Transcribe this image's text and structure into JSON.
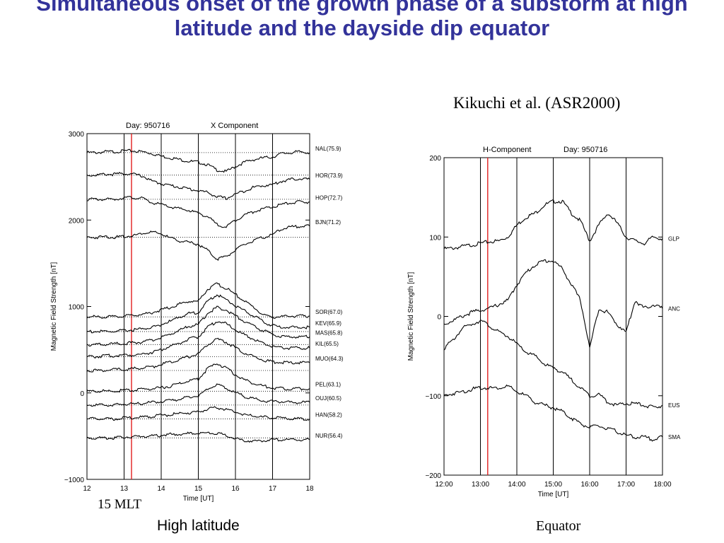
{
  "slide": {
    "title": "Simultaneous onset of the growth phase of a substorm at high latitude and the dayside dip equator",
    "citation": "Kikuchi et al. (ASR2000)",
    "mlt_label": "15 MLT",
    "caption_left": "High latitude",
    "caption_right": "Equator"
  },
  "colors": {
    "title": "#33339a",
    "onset_line": "#e02020",
    "trace": "#000000"
  },
  "chart_data": [
    {
      "type": "line",
      "title": "Day: 950716",
      "subtitle": "X Component",
      "xlabel": "Time [UT]",
      "ylabel": "Magnetic Field Strength  [nT]",
      "xlim": [
        12,
        18
      ],
      "ylim": [
        -1000,
        3000
      ],
      "x_ticks": [
        "12",
        "13",
        "14",
        "15",
        "16",
        "17",
        "18"
      ],
      "y_ticks": [
        "3000",
        "2000",
        "1000",
        "0",
        "−1000"
      ],
      "y_tick_values": [
        3000,
        2000,
        1000,
        0,
        -1000
      ],
      "vertical_lines": [
        13.0,
        14.0,
        15.0,
        16.0,
        17.0
      ],
      "onset_line": 13.2,
      "grid": "dotted horizontal baselines",
      "x": [
        12.0,
        12.25,
        12.5,
        12.75,
        13.0,
        13.25,
        13.5,
        13.75,
        14.0,
        14.25,
        14.5,
        14.75,
        15.0,
        15.25,
        15.5,
        15.75,
        16.0,
        16.25,
        16.5,
        16.75,
        17.0,
        17.25,
        17.5,
        17.75,
        18.0
      ],
      "series": [
        {
          "name": "NAL(75.9)",
          "values": [
            2780,
            2780,
            2790,
            2790,
            2800,
            2800,
            2790,
            2770,
            2740,
            2720,
            2700,
            2680,
            2670,
            2640,
            2580,
            2560,
            2620,
            2670,
            2700,
            2720,
            2730,
            2770,
            2780,
            2790,
            2780
          ]
        },
        {
          "name": "HOR(73.9)",
          "values": [
            2520,
            2520,
            2530,
            2530,
            2540,
            2530,
            2510,
            2450,
            2420,
            2400,
            2380,
            2360,
            2340,
            2320,
            2270,
            2250,
            2300,
            2340,
            2380,
            2400,
            2410,
            2450,
            2470,
            2480,
            2470
          ]
        },
        {
          "name": "HOP(72.7)",
          "values": [
            2240,
            2240,
            2240,
            2240,
            2260,
            2260,
            2250,
            2200,
            2180,
            2150,
            2130,
            2110,
            2080,
            2040,
            1950,
            1920,
            2000,
            2060,
            2100,
            2130,
            2150,
            2180,
            2200,
            2210,
            2210
          ]
        },
        {
          "name": "BJN(71.2)",
          "values": [
            1800,
            1800,
            1810,
            1800,
            1810,
            1820,
            1850,
            1860,
            1840,
            1790,
            1760,
            1740,
            1720,
            1650,
            1550,
            1580,
            1650,
            1720,
            1760,
            1800,
            1830,
            1900,
            1920,
            1930,
            1930
          ]
        },
        {
          "name": "SOR(67.0)",
          "values": [
            880,
            880,
            880,
            880,
            890,
            900,
            910,
            930,
            960,
            990,
            1030,
            1060,
            1060,
            1200,
            1260,
            1210,
            1140,
            1060,
            990,
            900,
            880,
            880,
            890,
            890,
            890
          ]
        },
        {
          "name": "KEV(65.9)",
          "values": [
            710,
            710,
            710,
            710,
            720,
            730,
            740,
            760,
            790,
            830,
            880,
            920,
            930,
            1060,
            1140,
            1080,
            1010,
            950,
            890,
            820,
            780,
            760,
            760,
            760,
            760
          ]
        },
        {
          "name": "MAS(65.8)",
          "values": [
            560,
            560,
            560,
            570,
            570,
            580,
            590,
            610,
            640,
            680,
            730,
            770,
            790,
            920,
            990,
            960,
            890,
            830,
            770,
            720,
            680,
            650,
            650,
            650,
            650
          ]
        },
        {
          "name": "KIL(65.5)",
          "values": [
            420,
            420,
            430,
            430,
            440,
            440,
            450,
            470,
            500,
            540,
            580,
            620,
            650,
            760,
            830,
            800,
            730,
            670,
            620,
            570,
            540,
            520,
            520,
            520,
            520
          ]
        },
        {
          "name": "MUO(64.3)",
          "values": [
            260,
            260,
            260,
            270,
            270,
            280,
            290,
            300,
            330,
            360,
            390,
            420,
            450,
            560,
            620,
            590,
            520,
            460,
            420,
            380,
            360,
            350,
            350,
            350,
            350
          ]
        },
        {
          "name": "PEL(63.1)",
          "values": [
            20,
            20,
            20,
            20,
            30,
            30,
            40,
            50,
            60,
            80,
            110,
            140,
            160,
            280,
            340,
            290,
            210,
            150,
            110,
            80,
            60,
            50,
            50,
            50,
            50
          ]
        },
        {
          "name": "OUJ(60.5)",
          "values": [
            -140,
            -140,
            -140,
            -140,
            -130,
            -130,
            -120,
            -110,
            -100,
            -90,
            -70,
            -50,
            -30,
            50,
            90,
            60,
            0,
            -40,
            -70,
            -90,
            -100,
            -100,
            -110,
            -110,
            -110
          ]
        },
        {
          "name": "HAN(58.2)",
          "values": [
            -300,
            -300,
            -300,
            -300,
            -290,
            -290,
            -280,
            -270,
            -260,
            -250,
            -240,
            -230,
            -220,
            -190,
            -170,
            -190,
            -220,
            -250,
            -270,
            -280,
            -290,
            -290,
            -300,
            -300,
            -300
          ]
        },
        {
          "name": "NUR(56.4)",
          "values": [
            -520,
            -520,
            -520,
            -520,
            -510,
            -510,
            -500,
            -500,
            -490,
            -480,
            -480,
            -470,
            -470,
            -460,
            -470,
            -490,
            -530,
            -550,
            -560,
            -550,
            -540,
            -540,
            -540,
            -540,
            -540
          ]
        }
      ]
    },
    {
      "type": "line",
      "title": "H-Component",
      "subtitle": "Day: 950716",
      "xlabel": "Time [UT]",
      "ylabel": "Magnetic Field Strength  [nT]",
      "xlim": [
        12,
        18
      ],
      "ylim": [
        -200,
        200
      ],
      "x_ticks": [
        "12:00",
        "13:00",
        "14:00",
        "15:00",
        "16:00",
        "17:00",
        "18:00"
      ],
      "y_ticks": [
        "200",
        "100",
        "0",
        "−100",
        "−200"
      ],
      "y_tick_values": [
        200,
        100,
        0,
        -100,
        -200
      ],
      "vertical_lines": [
        13.0,
        14.0,
        15.0,
        16.0,
        17.0
      ],
      "onset_line": 13.2,
      "x": [
        12.0,
        12.25,
        12.5,
        12.75,
        13.0,
        13.25,
        13.5,
        13.75,
        14.0,
        14.25,
        14.5,
        14.75,
        15.0,
        15.25,
        15.5,
        15.75,
        16.0,
        16.25,
        16.5,
        16.75,
        17.0,
        17.25,
        17.5,
        17.75,
        18.0
      ],
      "series": [
        {
          "name": "GLP",
          "values": [
            85,
            86,
            88,
            90,
            92,
            94,
            95,
            100,
            115,
            125,
            130,
            140,
            145,
            145,
            130,
            120,
            95,
            115,
            130,
            118,
            100,
            95,
            92,
            100,
            98
          ]
        },
        {
          "name": "ANC",
          "values": [
            -10,
            -5,
            0,
            5,
            8,
            10,
            15,
            20,
            40,
            55,
            65,
            70,
            70,
            60,
            40,
            20,
            -40,
            10,
            5,
            -10,
            -20,
            20,
            10,
            15,
            10
          ]
        },
        {
          "name": "EUS",
          "values": [
            -40,
            -30,
            -15,
            -10,
            -5,
            -12,
            -20,
            -25,
            -35,
            -45,
            -50,
            -60,
            -65,
            -70,
            -80,
            -90,
            -100,
            -98,
            -108,
            -112,
            -110,
            -110,
            -112,
            -115,
            -112
          ]
        },
        {
          "name": "SMA",
          "values": [
            -100,
            -97,
            -95,
            -92,
            -90,
            -90,
            -90,
            -88,
            -95,
            -100,
            -108,
            -112,
            -115,
            -120,
            -128,
            -135,
            -140,
            -138,
            -142,
            -145,
            -150,
            -152,
            -152,
            -155,
            -152
          ]
        }
      ]
    }
  ]
}
